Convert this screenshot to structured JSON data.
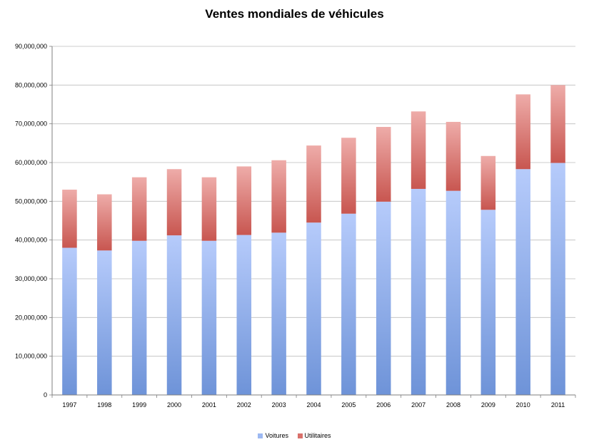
{
  "chart_data": {
    "type": "bar",
    "stacked": true,
    "title": "Ventes mondiales de véhicules",
    "xlabel": "",
    "ylabel": "",
    "categories": [
      "1997",
      "1998",
      "1999",
      "2000",
      "2001",
      "2002",
      "2003",
      "2004",
      "2005",
      "2006",
      "2007",
      "2008",
      "2009",
      "2010",
      "2011"
    ],
    "series": [
      {
        "name": "Voitures",
        "color": "#8aa9ec",
        "values": [
          38000000,
          37300000,
          39800000,
          41200000,
          39800000,
          41300000,
          41900000,
          44500000,
          46800000,
          49900000,
          53200000,
          52700000,
          47800000,
          58300000,
          59900000
        ]
      },
      {
        "name": "Utilitaires",
        "color": "#d87f7b",
        "values": [
          15000000,
          14500000,
          16400000,
          17100000,
          16400000,
          17700000,
          18700000,
          19900000,
          19600000,
          19300000,
          20000000,
          17800000,
          13900000,
          19300000,
          20100000
        ]
      }
    ],
    "ylim": [
      0,
      90000000
    ],
    "yticks": [
      "0",
      "10,000,000",
      "20,000,000",
      "30,000,000",
      "40,000,000",
      "50,000,000",
      "60,000,000",
      "70,000,000",
      "80,000,000",
      "90,000,000"
    ],
    "grid": true,
    "legend_position": "bottom"
  }
}
